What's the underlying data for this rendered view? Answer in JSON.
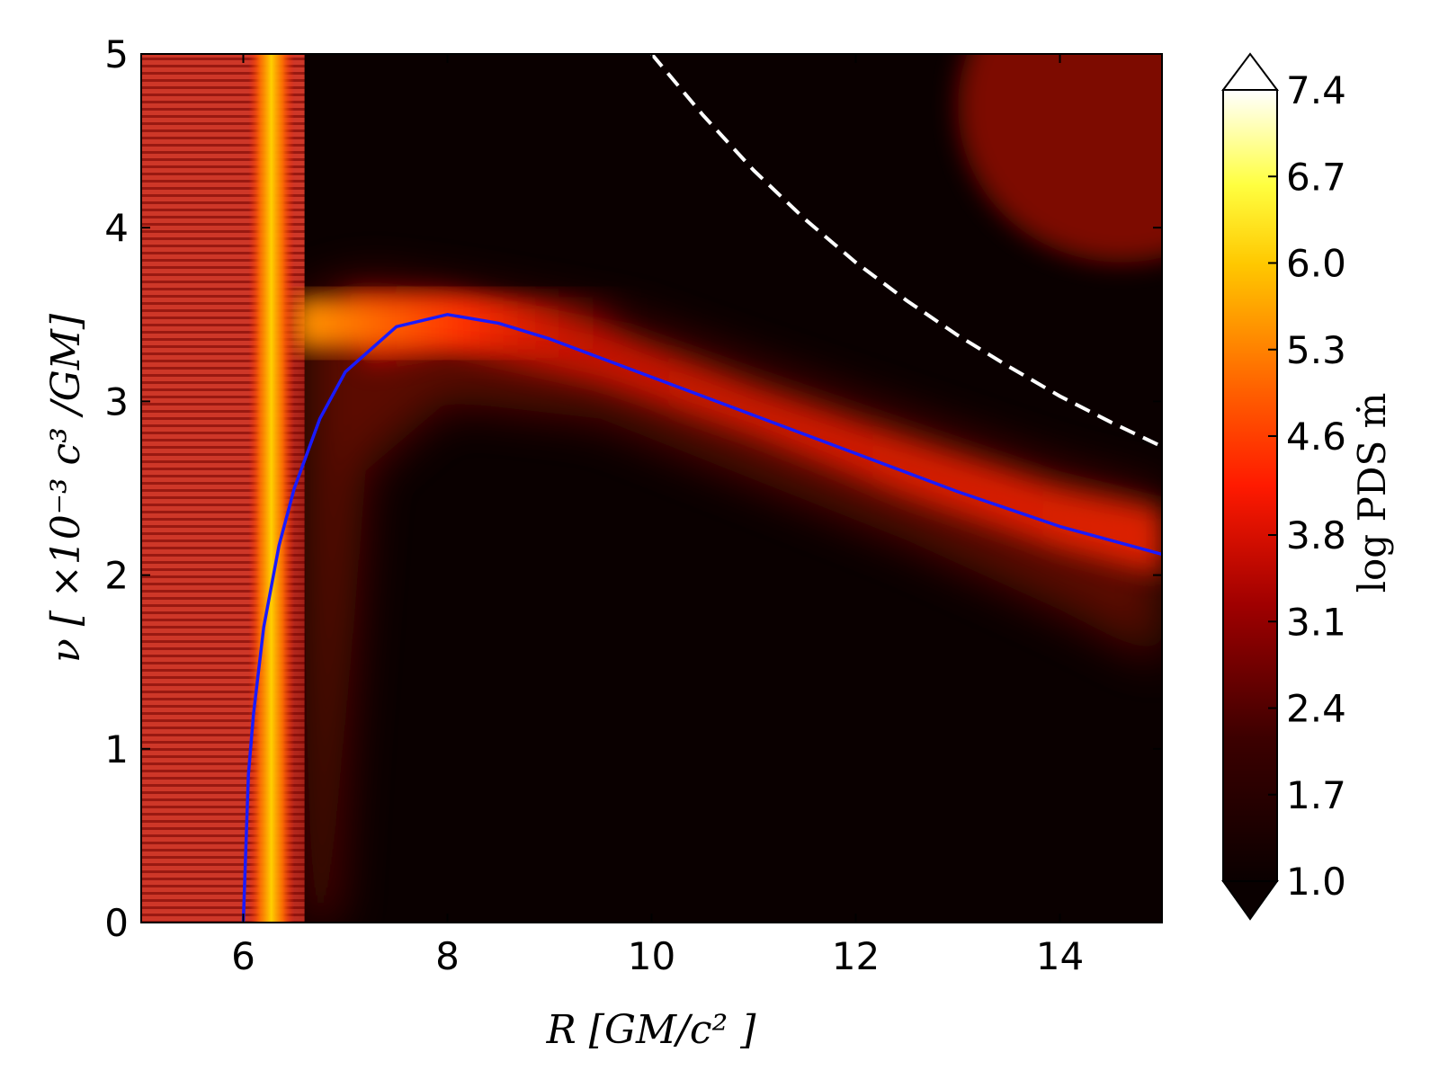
{
  "chart_data": {
    "type": "heatmap",
    "title": "",
    "xlabel": "R [GM/c² ]",
    "ylabel": "ν [ ×10⁻³ c³ /GM]",
    "xlim": [
      5,
      15
    ],
    "ylim": [
      0,
      5
    ],
    "x_ticks": [
      "6",
      "8",
      "10",
      "12",
      "14"
    ],
    "y_ticks": [
      "0",
      "1",
      "2",
      "3",
      "4",
      "5"
    ],
    "colorbar": {
      "label": "log PDS ṁ",
      "ticks": [
        "1.0",
        "1.7",
        "2.4",
        "3.1",
        "3.8",
        "4.6",
        "5.3",
        "6.0",
        "6.7",
        "7.4"
      ],
      "range": [
        1.0,
        7.4
      ],
      "extend": "both",
      "colormap": [
        "#0a0000",
        "#5a0000",
        "#b00000",
        "#ff2000",
        "#ff7a00",
        "#ffd200",
        "#ffff50",
        "#ffffff"
      ]
    },
    "series": [
      {
        "style": "solid",
        "color": "#1a1aff",
        "x": [
          6.0,
          6.05,
          6.1,
          6.2,
          6.35,
          6.5,
          6.75,
          7.0,
          7.5,
          8.0,
          8.5,
          9.0,
          10.0,
          11.0,
          12.0,
          13.0,
          14.0,
          15.0
        ],
        "y": [
          0.0,
          0.85,
          1.2,
          1.7,
          2.17,
          2.5,
          2.9,
          3.17,
          3.43,
          3.5,
          3.45,
          3.36,
          3.14,
          2.92,
          2.7,
          2.48,
          2.28,
          2.12
        ]
      },
      {
        "style": "dashed",
        "color": "#ffffff",
        "x": [
          10.0,
          10.5,
          11.0,
          11.5,
          12.0,
          12.5,
          13.0,
          13.5,
          14.0,
          14.5,
          15.0
        ],
        "y": [
          5.0,
          4.65,
          4.33,
          4.05,
          3.8,
          3.58,
          3.38,
          3.2,
          3.03,
          2.88,
          2.74
        ]
      }
    ],
    "bands": [
      {
        "feature": "vertical band",
        "x": [
          5.0,
          6.6
        ],
        "y": [
          0,
          5
        ],
        "level": 3.4
      },
      {
        "feature": "vertical band peak",
        "x": [
          6.05,
          6.5
        ],
        "y": [
          0,
          5
        ],
        "level": 5.6
      },
      {
        "feature": "horizontal band",
        "x": [
          6.5,
          9.8
        ],
        "y": [
          3.3,
          3.6
        ],
        "level": 4.2
      },
      {
        "feature": "top-right patch",
        "x": [
          13.5,
          15.0
        ],
        "y": [
          4.1,
          5.0
        ],
        "level": 2.8
      }
    ]
  }
}
